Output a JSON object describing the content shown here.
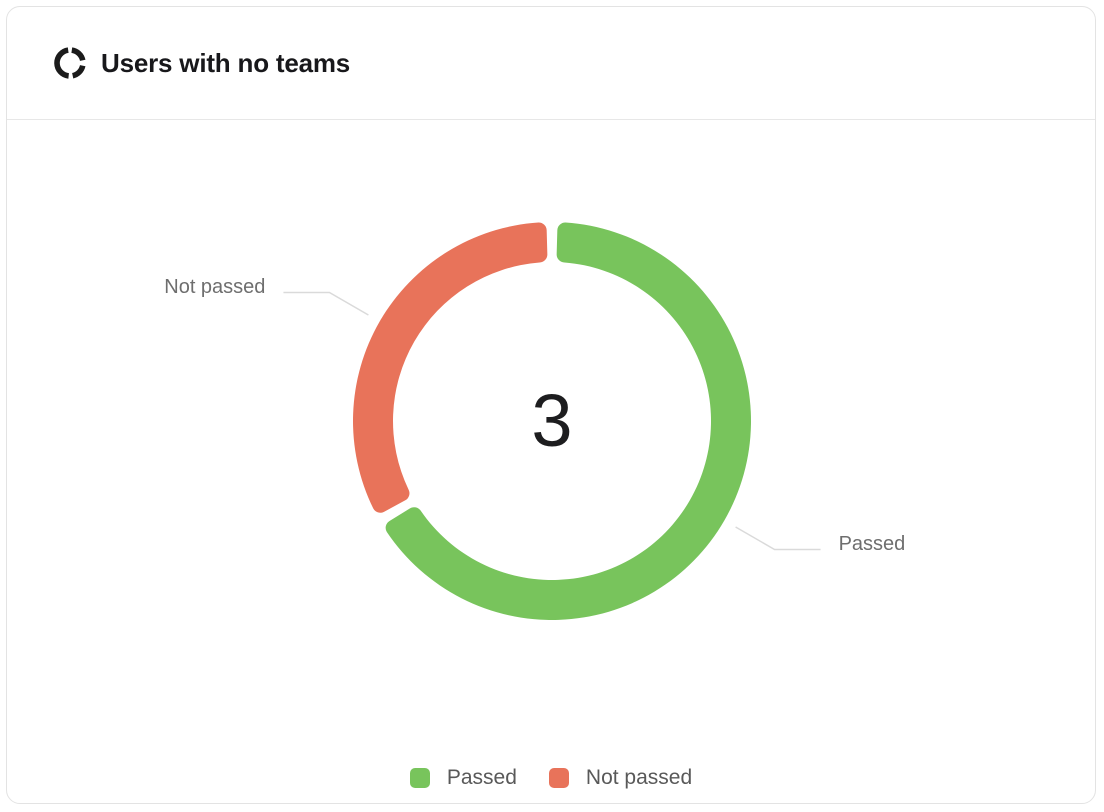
{
  "header": {
    "icon": "donut-chart-icon",
    "title": "Users with no teams"
  },
  "chart_data": {
    "type": "pie",
    "subtype": "donut",
    "title": "Users with no teams",
    "center_value": "3",
    "total": 3,
    "segments": [
      {
        "label": "Passed",
        "value": 2,
        "color": "#78c45c"
      },
      {
        "label": "Not passed",
        "value": 1,
        "color": "#e8735a"
      }
    ],
    "labels_outside": true,
    "label_line_color": "#dadada",
    "label_text_color": "#6e6e6e",
    "legend": {
      "position": "bottom",
      "items": [
        "Passed",
        "Not passed"
      ]
    }
  }
}
